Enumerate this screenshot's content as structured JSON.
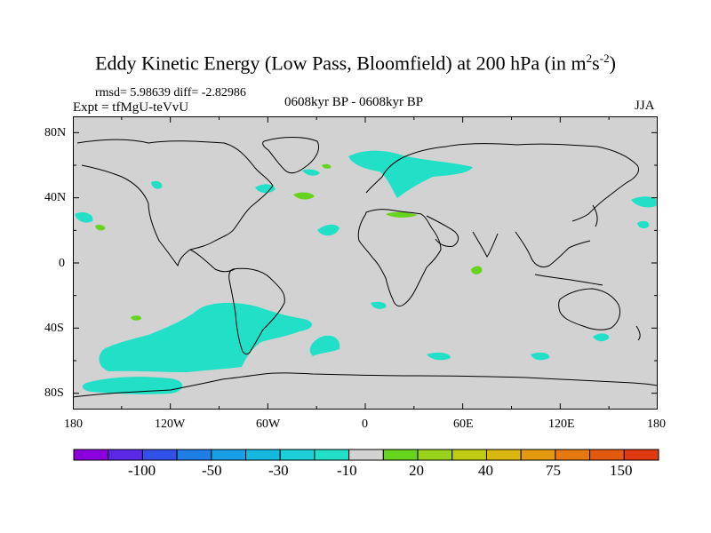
{
  "title": {
    "main": "Eddy Kinetic Energy (Low Pass, Bloomfield) at 200 hPa (in m",
    "sup1": "2",
    "mid": "s",
    "sup2": "-2",
    "end": ")"
  },
  "stats": "rmsd= 5.98639  diff= -2.82986",
  "experiment": "Expt = tfMgU-teVvU",
  "period": "0608kyr BP - 0608kyr BP",
  "season": "JJA",
  "axes": {
    "lat_labels": [
      "80N",
      "40N",
      "0",
      "40S",
      "80S"
    ],
    "lon_labels": [
      "180",
      "120W",
      "60W",
      "0",
      "60E",
      "120E",
      "180"
    ]
  },
  "colorbar": {
    "colors": [
      "#8c00e0",
      "#5a28e6",
      "#3050e8",
      "#1f7ee6",
      "#1a9ee6",
      "#16b8e0",
      "#1ccfd8",
      "#22e0c8",
      "#d2d2d2",
      "#66d41f",
      "#98d21c",
      "#c0cc14",
      "#d8b810",
      "#e49a10",
      "#e67a10",
      "#e25a10",
      "#e03a10"
    ],
    "labels": [
      "-100",
      "-50",
      "-30",
      "-10",
      "20",
      "40",
      "75",
      "150"
    ]
  },
  "map_colors": {
    "background": "#d2d2d2",
    "positive_small": "#22e0c8",
    "negative_small": "#66d41f"
  }
}
